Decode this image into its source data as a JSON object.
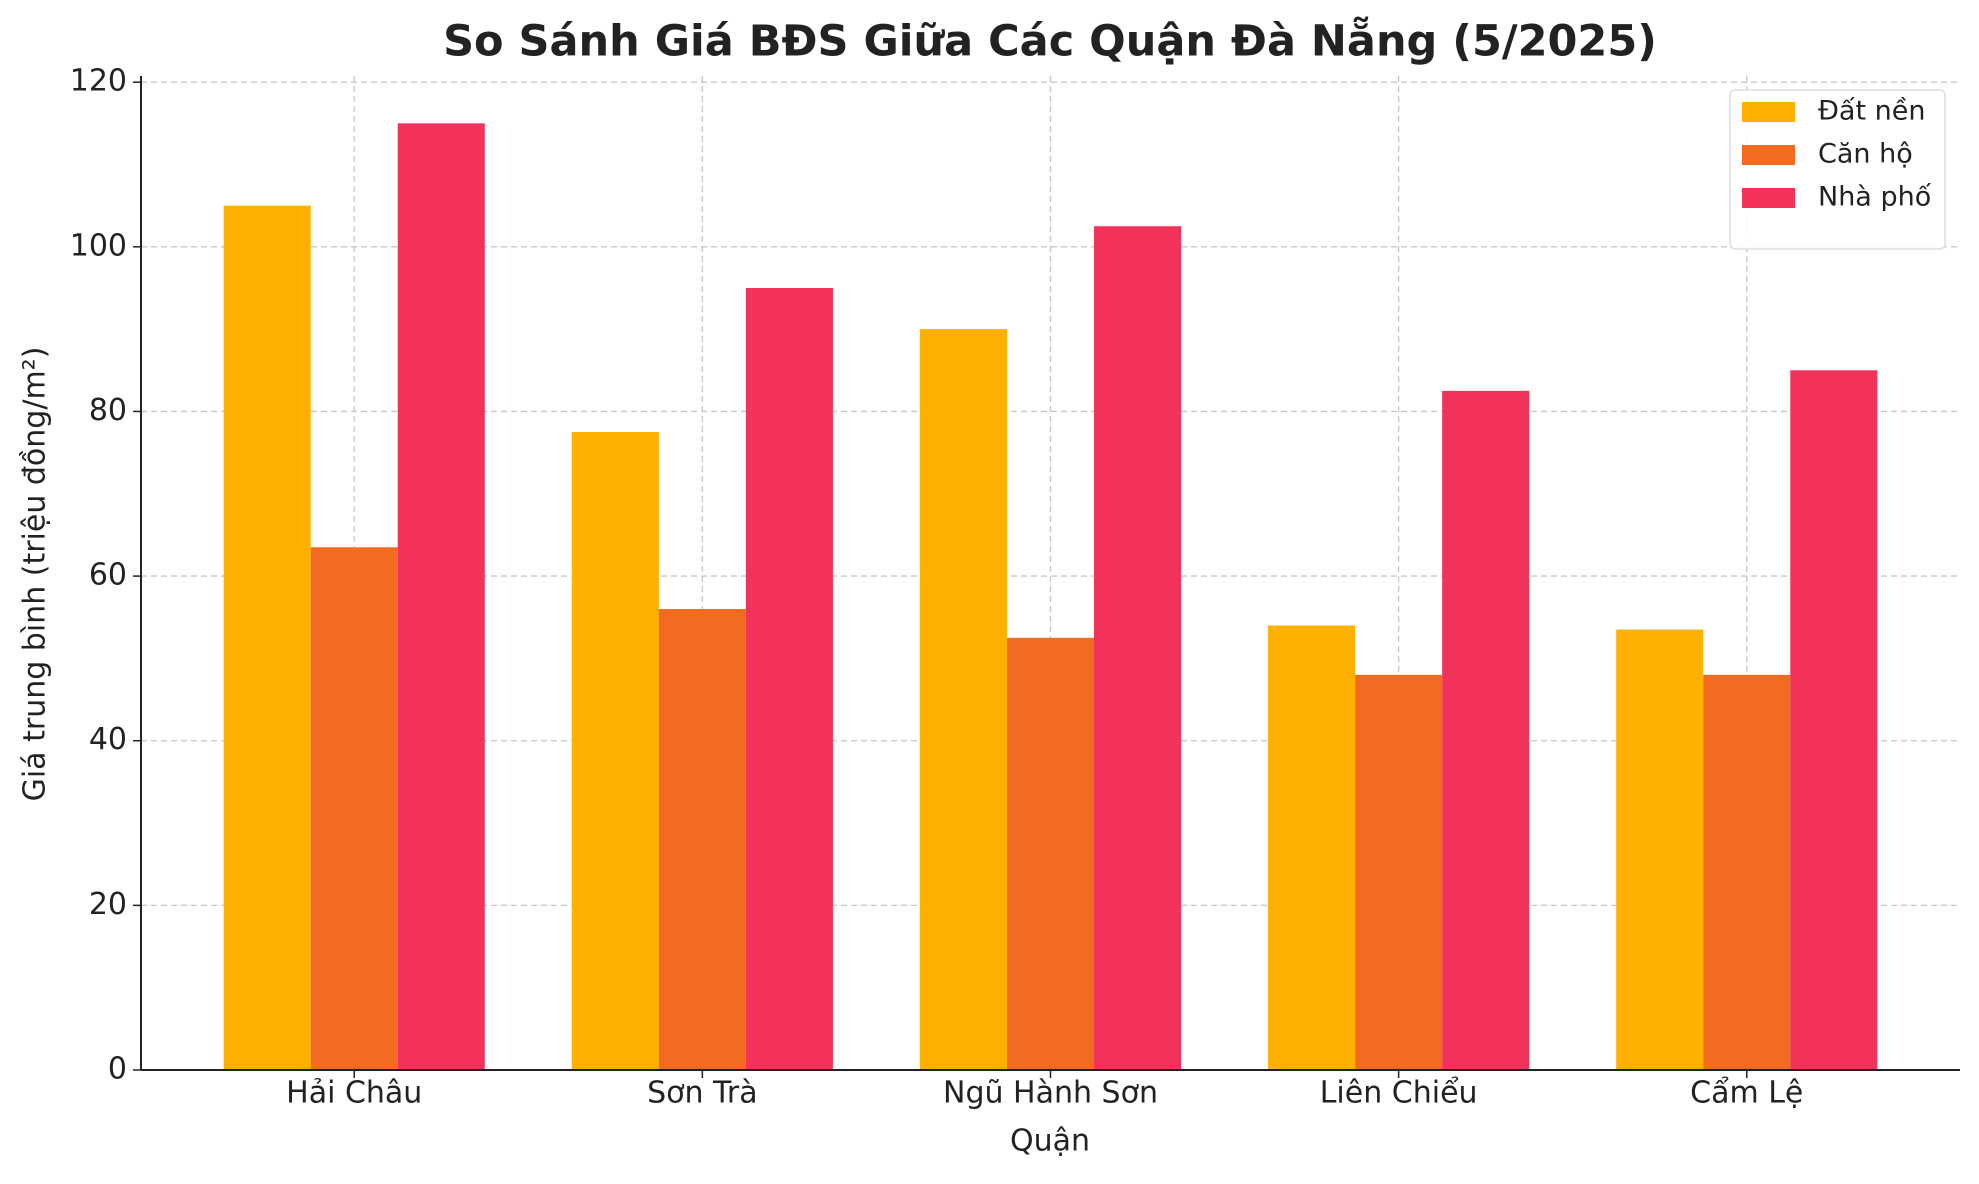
{
  "chart_data": {
    "type": "bar",
    "title": "So Sánh Giá BĐS Giữa Các Quận Đà Nẵng (5/2025)",
    "x_label": "Quận",
    "y_label": "Giá trung bình (triệu đồng/m²)",
    "categories": [
      "Hải Châu",
      "Sơn Trà",
      "Ngũ Hành Sơn",
      "Liên Chiểu",
      "Cẩm Lệ"
    ],
    "series": [
      {
        "name": "Đất nền",
        "color": "#ffb000",
        "values": [
          105,
          77.5,
          90,
          54,
          53.5
        ]
      },
      {
        "name": "Căn hộ",
        "color": "#f26b21",
        "values": [
          63.5,
          56,
          52.5,
          48,
          48
        ]
      },
      {
        "name": "Nhà phố",
        "color": "#f2325a",
        "values": [
          115,
          95,
          102.5,
          82.5,
          85
        ]
      }
    ],
    "ylim": [
      0,
      120.75
    ],
    "yticks": [
      0,
      20,
      40,
      60,
      80,
      100,
      120
    ],
    "grid": true,
    "legend": "upper right"
  }
}
